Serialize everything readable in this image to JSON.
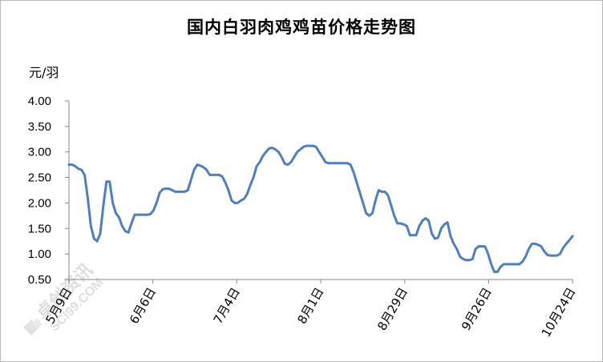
{
  "chart_data": {
    "type": "line",
    "title": "国内白羽肉鸡鸡苗价格走势图",
    "ylabel": "元/羽",
    "xlabel": "",
    "ylim": [
      0.5,
      4.0
    ],
    "yticks": [
      "4.00",
      "3.50",
      "3.00",
      "2.50",
      "2.00",
      "1.50",
      "1.00",
      "0.50"
    ],
    "xticks": [
      "5月9日",
      "6月6日",
      "7月4日",
      "8月1日",
      "8月29日",
      "9月26日",
      "10月24日"
    ],
    "grid": false,
    "series": [
      {
        "color": "#4f7fbc",
        "values": [
          2.75,
          2.75,
          2.72,
          2.67,
          2.65,
          2.55,
          2.1,
          1.55,
          1.3,
          1.25,
          1.4,
          1.95,
          2.42,
          2.42,
          2.0,
          1.8,
          1.72,
          1.55,
          1.45,
          1.42,
          1.6,
          1.77,
          1.77,
          1.77,
          1.77,
          1.77,
          1.78,
          1.85,
          2.0,
          2.2,
          2.27,
          2.28,
          2.28,
          2.25,
          2.22,
          2.22,
          2.22,
          2.22,
          2.25,
          2.45,
          2.65,
          2.75,
          2.73,
          2.7,
          2.65,
          2.55,
          2.55,
          2.55,
          2.55,
          2.52,
          2.4,
          2.25,
          2.05,
          2.0,
          2.0,
          2.05,
          2.08,
          2.18,
          2.35,
          2.5,
          2.72,
          2.8,
          2.92,
          3.0,
          3.07,
          3.08,
          3.05,
          3.0,
          2.9,
          2.77,
          2.75,
          2.8,
          2.9,
          3.0,
          3.05,
          3.1,
          3.12,
          3.12,
          3.12,
          3.1,
          3.0,
          2.9,
          2.8,
          2.78,
          2.78,
          2.78,
          2.78,
          2.78,
          2.78,
          2.78,
          2.75,
          2.6,
          2.4,
          2.2,
          2.0,
          1.8,
          1.75,
          1.8,
          2.05,
          2.25,
          2.22,
          2.22,
          2.15,
          1.95,
          1.75,
          1.6,
          1.6,
          1.58,
          1.55,
          1.37,
          1.37,
          1.37,
          1.55,
          1.65,
          1.7,
          1.65,
          1.4,
          1.3,
          1.32,
          1.5,
          1.58,
          1.62,
          1.35,
          1.2,
          1.1,
          0.95,
          0.9,
          0.88,
          0.88,
          0.9,
          1.1,
          1.15,
          1.15,
          1.15,
          1.0,
          0.8,
          0.65,
          0.65,
          0.75,
          0.8,
          0.8,
          0.8,
          0.8,
          0.8,
          0.8,
          0.85,
          0.95,
          1.1,
          1.2,
          1.2,
          1.18,
          1.15,
          1.05,
          0.98,
          0.97,
          0.97,
          0.97,
          1.0,
          1.12,
          1.2,
          1.27,
          1.35
        ]
      }
    ]
  },
  "watermark": {
    "text": "卓创资讯",
    "subtext": "SCI99.COM"
  }
}
